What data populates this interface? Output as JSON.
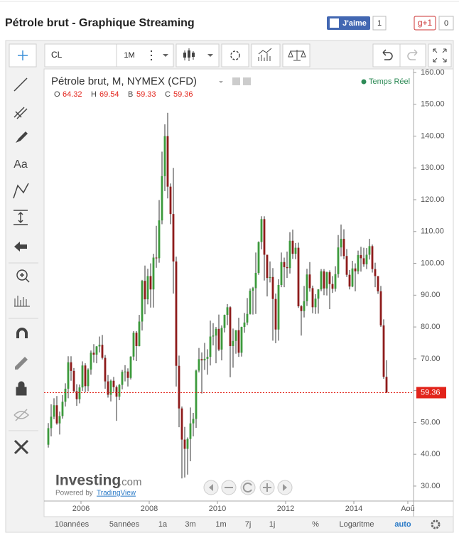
{
  "header": {
    "title": "Pétrole brut - Graphique Streaming",
    "facebook": "J'aime",
    "facebook_count": 1,
    "gplus": "g+1",
    "gplus_count": 0
  },
  "toolbar": {
    "symbol": "CL",
    "interval": "1M"
  },
  "left_tools": {
    "text_tool": "Aa"
  },
  "legend": {
    "title": "Pétrole brut, M, NYMEX (CFD)",
    "ohlc_labels": [
      "O",
      "H",
      "B",
      "C"
    ],
    "status": "Temps Réel"
  },
  "watermark": {
    "brand": "Investing",
    "brand_suffix": ".com",
    "powered_by": "Powered by",
    "provider": "TradingView"
  },
  "bottom_bar": {
    "ranges": [
      "10années",
      "5années",
      "1a",
      "3m",
      "1m",
      "7j",
      "1j"
    ],
    "options": [
      "%",
      "Logaritme",
      "auto"
    ]
  },
  "chart_data": {
    "type": "candlestick",
    "x": [
      "2005-01",
      "2005-02",
      "2005-03",
      "2005-04",
      "2005-05",
      "2005-06",
      "2005-07",
      "2005-08",
      "2005-09",
      "2005-10",
      "2005-11",
      "2005-12",
      "2006-01",
      "2006-02",
      "2006-03",
      "2006-04",
      "2006-05",
      "2006-06",
      "2006-07",
      "2006-08",
      "2006-09",
      "2006-10",
      "2006-11",
      "2006-12",
      "2007-01",
      "2007-02",
      "2007-03",
      "2007-04",
      "2007-05",
      "2007-06",
      "2007-07",
      "2007-08",
      "2007-09",
      "2007-10",
      "2007-11",
      "2007-12",
      "2008-01",
      "2008-02",
      "2008-03",
      "2008-04",
      "2008-05",
      "2008-06",
      "2008-07",
      "2008-08",
      "2008-09",
      "2008-10",
      "2008-11",
      "2008-12",
      "2009-01",
      "2009-02",
      "2009-03",
      "2009-04",
      "2009-05",
      "2009-06",
      "2009-07",
      "2009-08",
      "2009-09",
      "2009-10",
      "2009-11",
      "2009-12",
      "2010-01",
      "2010-02",
      "2010-03",
      "2010-04",
      "2010-05",
      "2010-06",
      "2010-07",
      "2010-08",
      "2010-09",
      "2010-10",
      "2010-11",
      "2010-12",
      "2011-01",
      "2011-02",
      "2011-03",
      "2011-04",
      "2011-05",
      "2011-06",
      "2011-07",
      "2011-08",
      "2011-09",
      "2011-10",
      "2011-11",
      "2011-12",
      "2012-01",
      "2012-02",
      "2012-03",
      "2012-04",
      "2012-05",
      "2012-06",
      "2012-07",
      "2012-08",
      "2012-09",
      "2012-10",
      "2012-11",
      "2012-12",
      "2013-01",
      "2013-02",
      "2013-03",
      "2013-04",
      "2013-05",
      "2013-06",
      "2013-07",
      "2013-08",
      "2013-09",
      "2013-10",
      "2013-11",
      "2013-12",
      "2014-01",
      "2014-02",
      "2014-03",
      "2014-04",
      "2014-05",
      "2014-06",
      "2014-07",
      "2014-08",
      "2014-09",
      "2014-10",
      "2014-11",
      "2014-12"
    ],
    "open": [
      43.0,
      48.2,
      51.8,
      55.4,
      49.7,
      52.0,
      56.5,
      60.6,
      68.9,
      66.2,
      59.8,
      57.3,
      61.0,
      67.9,
      61.4,
      66.6,
      71.9,
      71.3,
      73.9,
      74.4,
      70.3,
      62.9,
      58.7,
      63.1,
      61.1,
      58.1,
      61.8,
      65.9,
      66.0,
      64.0,
      70.7,
      78.2,
      74.0,
      81.7,
      94.5,
      88.7,
      96.0,
      91.8,
      101.8,
      101.6,
      113.5,
      127.4,
      140.0,
      124.1,
      115.5,
      100.6,
      67.8,
      54.4,
      44.6,
      41.7,
      44.8,
      49.7,
      51.1,
      66.3,
      69.9,
      69.5,
      70.0,
      70.6,
      77.0,
      77.3,
      79.4,
      72.9,
      79.7,
      83.8,
      86.2,
      74.0,
      75.6,
      79.0,
      71.9,
      80.0,
      81.4,
      84.1,
      91.4,
      92.2,
      97.0,
      106.7,
      113.9,
      102.7,
      95.4,
      95.7,
      88.8,
      79.2,
      93.2,
      100.4,
      98.8,
      98.5,
      107.1,
      103.0,
      104.9,
      86.5,
      85.0,
      88.1,
      96.5,
      92.2,
      86.2,
      88.9,
      91.8,
      97.5,
      92.1,
      97.2,
      93.5,
      92.0,
      96.6,
      105.0,
      107.7,
      102.3,
      96.4,
      92.7,
      98.4,
      97.5,
      102.6,
      101.6,
      99.7,
      102.7,
      105.4,
      98.2,
      96.0,
      91.2,
      80.5,
      64.32
    ],
    "high": [
      49.8,
      55.7,
      57.6,
      58.3,
      53.4,
      58.6,
      62.3,
      70.8,
      70.8,
      67.1,
      62.0,
      61.9,
      69.2,
      68.6,
      67.0,
      72.6,
      74.6,
      74.0,
      77.0,
      77.5,
      71.2,
      64.9,
      63.5,
      64.3,
      61.6,
      62.1,
      66.5,
      68.0,
      67.0,
      70.8,
      78.7,
      78.7,
      83.8,
      94.8,
      99.3,
      98.3,
      100.0,
      103.0,
      111.8,
      119.9,
      135.1,
      143.7,
      147.3,
      125.1,
      130.0,
      102.1,
      71.0,
      55.0,
      48.6,
      45.3,
      54.7,
      53.0,
      66.6,
      73.4,
      72.0,
      75.0,
      73.0,
      82.0,
      81.2,
      80.0,
      83.9,
      80.5,
      83.9,
      87.2,
      86.5,
      79.5,
      79.0,
      82.9,
      80.1,
      84.4,
      89.1,
      92.1,
      92.6,
      103.4,
      106.9,
      114.8,
      114.8,
      102.7,
      100.6,
      98.5,
      90.5,
      95.0,
      103.4,
      101.8,
      103.7,
      109.8,
      110.6,
      106.4,
      106.5,
      86.9,
      92.9,
      98.3,
      100.4,
      93.0,
      90.3,
      91.9,
      98.2,
      98.2,
      97.4,
      97.8,
      96.0,
      99.1,
      108.9,
      112.2,
      110.7,
      104.5,
      97.9,
      100.8,
      100.0,
      104.0,
      105.2,
      104.9,
      104.8,
      107.7,
      105.9,
      100.2,
      95.7,
      92.9,
      82.4,
      69.54
    ],
    "low": [
      42.1,
      45.6,
      51.0,
      49.3,
      46.2,
      51.2,
      55.0,
      57.6,
      63.1,
      59.5,
      55.2,
      56.0,
      59.9,
      59.5,
      59.8,
      65.0,
      68.8,
      68.6,
      72.0,
      69.8,
      60.6,
      57.8,
      56.6,
      59.6,
      50.5,
      57.0,
      60.4,
      62.9,
      61.3,
      63.5,
      69.5,
      69.3,
      73.9,
      78.9,
      84.0,
      87.1,
      86.1,
      86.1,
      98.6,
      100.2,
      112.3,
      122.7,
      120.4,
      112.3,
      90.5,
      61.3,
      48.5,
      32.4,
      32.7,
      33.6,
      37.8,
      45.6,
      48.3,
      65.7,
      59.1,
      66.5,
      65.0,
      67.9,
      74.2,
      68.6,
      72.4,
      69.5,
      78.3,
      80.6,
      64.2,
      67.2,
      71.6,
      70.6,
      70.7,
      78.2,
      80.6,
      83.9,
      83.9,
      84.1,
      96.4,
      104.4,
      94.6,
      89.6,
      94.0,
      75.7,
      74.9,
      75.7,
      92.5,
      92.5,
      95.4,
      96.8,
      101.4,
      101.3,
      86.0,
      77.3,
      83.0,
      86.6,
      91.1,
      84.3,
      84.1,
      84.2,
      91.2,
      90.0,
      89.9,
      85.6,
      90.7,
      91.1,
      95.5,
      102.2,
      101.3,
      95.7,
      91.8,
      92.5,
      91.2,
      96.6,
      97.4,
      98.9,
      98.2,
      101.2,
      97.1,
      92.5,
      90.4,
      80.0,
      63.7,
      59.33
    ],
    "close": [
      48.2,
      51.8,
      55.4,
      49.7,
      52.0,
      56.5,
      60.6,
      68.9,
      66.2,
      59.8,
      57.3,
      61.0,
      67.9,
      61.4,
      66.6,
      71.9,
      71.3,
      73.9,
      74.4,
      70.3,
      62.9,
      58.7,
      63.1,
      61.1,
      58.1,
      61.8,
      65.9,
      66.0,
      64.0,
      70.7,
      78.2,
      74.0,
      81.7,
      94.5,
      88.7,
      96.0,
      91.8,
      101.8,
      101.6,
      113.5,
      127.4,
      140.0,
      124.1,
      115.5,
      100.6,
      67.8,
      54.4,
      44.6,
      41.7,
      44.8,
      49.7,
      51.1,
      66.3,
      69.9,
      69.5,
      70.0,
      70.6,
      77.0,
      77.3,
      79.4,
      72.9,
      79.7,
      83.8,
      86.2,
      74.0,
      75.6,
      79.0,
      71.9,
      80.0,
      81.4,
      84.1,
      91.4,
      92.2,
      97.0,
      106.7,
      113.9,
      102.7,
      95.4,
      95.7,
      88.8,
      79.2,
      93.2,
      100.4,
      98.8,
      98.5,
      107.1,
      103.0,
      104.9,
      86.5,
      85.0,
      88.1,
      96.5,
      92.2,
      86.2,
      88.9,
      91.8,
      97.5,
      92.1,
      97.2,
      93.5,
      92.0,
      96.6,
      105.0,
      107.7,
      102.3,
      96.4,
      92.7,
      98.4,
      97.5,
      102.6,
      101.6,
      99.7,
      102.7,
      105.4,
      98.2,
      96.0,
      91.2,
      80.5,
      64.32,
      59.36
    ],
    "up_color": "#3c9a3c",
    "down_color": "#8e1b1b",
    "price_line_color": "#e2231a",
    "ylim": [
      25.3,
      161.1
    ],
    "yticks": [
      {
        "value": 30,
        "label": "30.00"
      },
      {
        "value": 40,
        "label": "40.00"
      },
      {
        "value": 50,
        "label": "50.00"
      },
      {
        "value": 60,
        "label": "60.00"
      },
      {
        "value": 70,
        "label": "70.00"
      },
      {
        "value": 80,
        "label": "80.00"
      },
      {
        "value": 90,
        "label": "90.00"
      },
      {
        "value": 100,
        "label": "100.00"
      },
      {
        "value": 110,
        "label": "110.00"
      },
      {
        "value": 120,
        "label": "120.00"
      },
      {
        "value": 130,
        "label": "130.00"
      },
      {
        "value": 140,
        "label": "140.00"
      },
      {
        "value": 150,
        "label": "150.00"
      },
      {
        "value": 160,
        "label": "160.00"
      }
    ],
    "xlim": [
      2004.917,
      2015.75
    ],
    "xticks": [
      2006,
      2008,
      2010,
      2012,
      2014,
      {
        "value": 2015.583,
        "label": "Aoû"
      }
    ],
    "grid": false
  }
}
